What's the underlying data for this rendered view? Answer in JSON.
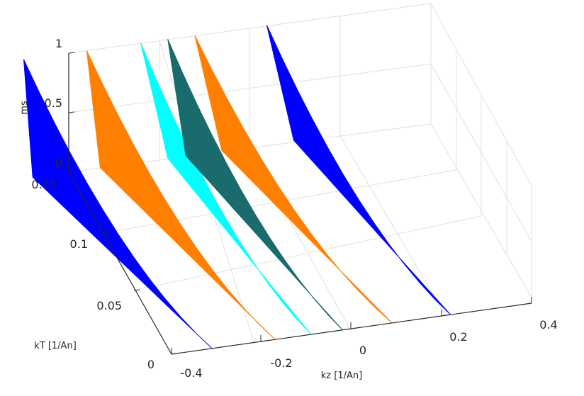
{
  "chart_data": {
    "type": "surface3d",
    "title": "",
    "xlabel": "kz [1/An]",
    "ylabel": "kT [1/An]",
    "zlabel": "ms",
    "xlim": [
      -0.4,
      0.4
    ],
    "ylim": [
      0,
      0.15
    ],
    "zlim": [
      0,
      1
    ],
    "xticks": [
      "-0.4",
      "-0.2",
      "0",
      "0.2",
      "0.4"
    ],
    "yticks": [
      "0",
      "0.05",
      "0.1",
      "0.15"
    ],
    "zticks": [
      "0",
      "0.5",
      "1"
    ],
    "grid": true,
    "series": [
      {
        "color": "#0000ff",
        "kz_at_kT0": -0.31,
        "kz_at_kT015": -0.48,
        "kz_top_kT015": -0.5
      },
      {
        "color": "#ff8000",
        "kz_at_kT0": -0.17,
        "kz_at_kT015": -0.33,
        "kz_top_kT015": -0.36
      },
      {
        "color": "#00ffff",
        "kz_at_kT0": -0.09,
        "kz_at_kT015": -0.18,
        "kz_top_kT015": -0.24
      },
      {
        "color": "mixed",
        "kz_at_kT0": -0.02,
        "kz_at_kT015": -0.14,
        "kz_top_kT015": -0.18
      },
      {
        "color": "#ff8000",
        "kz_at_kT0": 0.09,
        "kz_at_kT015": -0.06,
        "kz_top_kT015": -0.12
      },
      {
        "color": "#0000ff",
        "kz_at_kT0": 0.22,
        "kz_at_kT015": 0.1,
        "kz_top_kT015": 0.04
      }
    ]
  }
}
